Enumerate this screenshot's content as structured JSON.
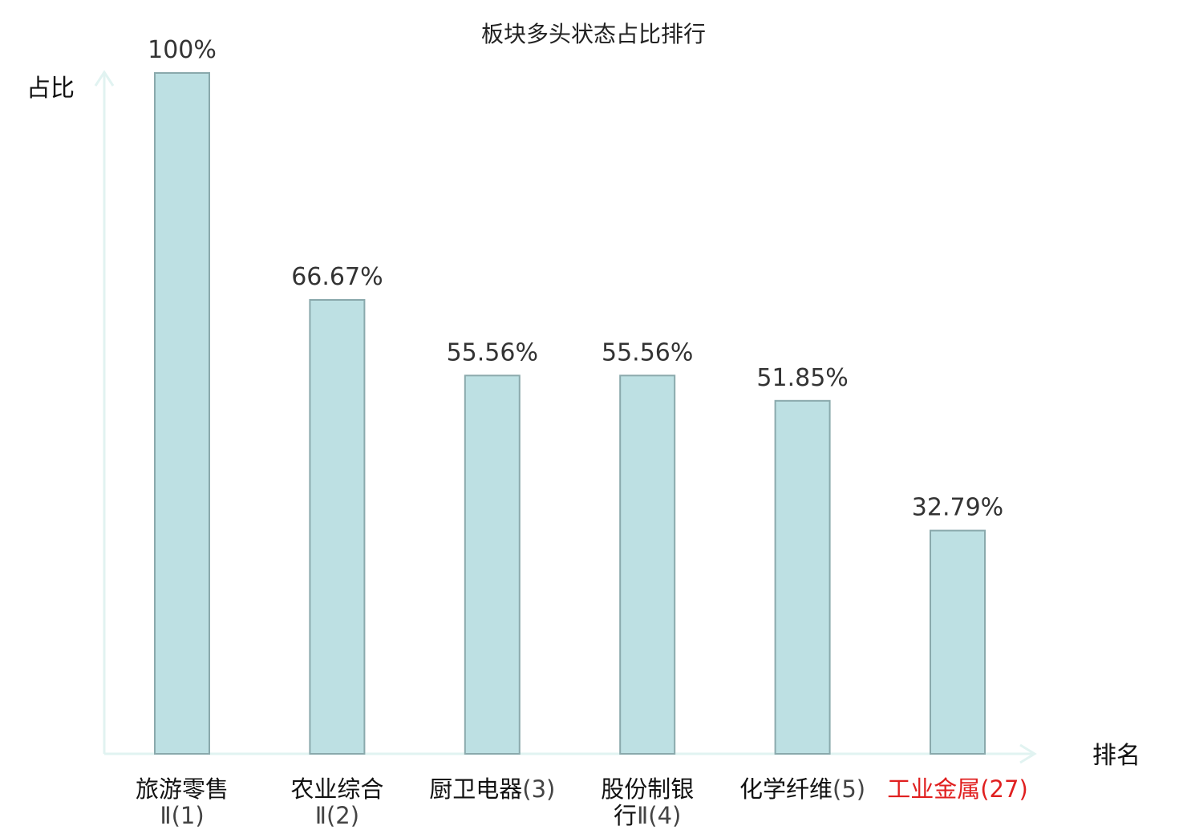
{
  "chart_data": {
    "type": "bar",
    "title": "板块多头状态占比排行",
    "ylabel": "占比",
    "xlabel": "排名",
    "ylim": [
      0,
      100
    ],
    "grid": false,
    "highlight_color": "#e02020",
    "bar_color": "#bde0e3",
    "categories": [
      {
        "lines": [
          {
            "name": "旅游零售",
            "num": ""
          },
          {
            "name": "",
            "num": "Ⅱ(1)"
          }
        ],
        "highlight": false
      },
      {
        "lines": [
          {
            "name": "农业综合",
            "num": ""
          },
          {
            "name": "",
            "num": "Ⅱ(2)"
          }
        ],
        "highlight": false
      },
      {
        "lines": [
          {
            "name": "厨卫电器",
            "num": "(3)"
          }
        ],
        "highlight": false
      },
      {
        "lines": [
          {
            "name": "股份制银",
            "num": ""
          },
          {
            "name": "行",
            "num": "Ⅱ(4)"
          }
        ],
        "highlight": false
      },
      {
        "lines": [
          {
            "name": "化学纤维",
            "num": "(5)"
          }
        ],
        "highlight": false
      },
      {
        "lines": [
          {
            "name": "工业金属",
            "num": "(27)"
          }
        ],
        "highlight": true
      }
    ],
    "values": [
      100,
      66.67,
      55.56,
      55.56,
      51.85,
      32.79
    ],
    "value_labels": [
      "100%",
      "66.67%",
      "55.56%",
      "55.56%",
      "51.85%",
      "32.79%"
    ]
  }
}
